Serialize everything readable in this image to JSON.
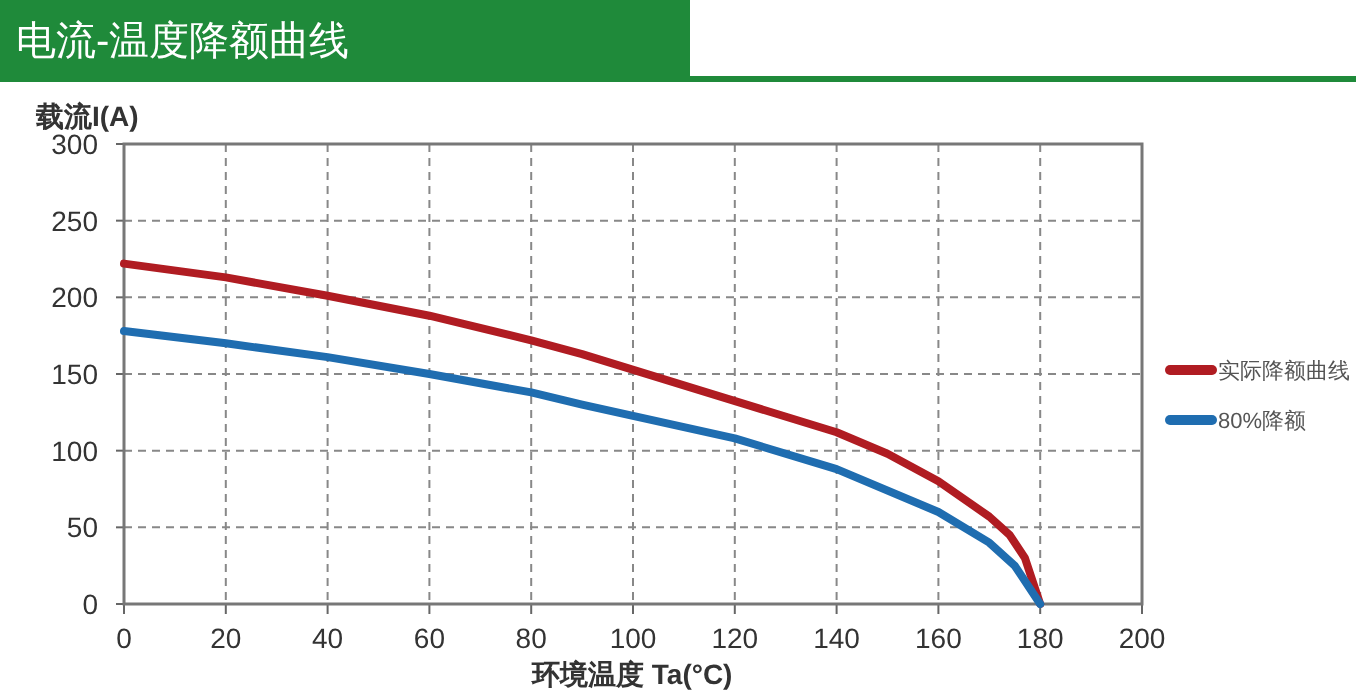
{
  "chart_data": {
    "type": "line",
    "title": "电流-温度降额曲线",
    "xlabel": "环境温度 Ta(°C)",
    "ylabel": "载流I(A)",
    "xlim": [
      0,
      200
    ],
    "xticks": [
      0,
      20,
      40,
      60,
      80,
      100,
      120,
      140,
      160,
      180,
      200
    ],
    "ylim": [
      0,
      300
    ],
    "yticks": [
      0,
      50,
      100,
      150,
      200,
      250,
      300
    ],
    "grid": true,
    "legend": "right",
    "line_style": "solid",
    "marker": "none",
    "series": [
      {
        "name": "实际降额曲线",
        "color": "#b01c22",
        "x": [
          0,
          20,
          40,
          60,
          80,
          90,
          140,
          150,
          160,
          170,
          174,
          177,
          180
        ],
        "values": [
          222,
          213,
          201,
          188,
          172,
          163,
          112,
          98,
          80,
          57,
          45,
          30,
          0
        ]
      },
      {
        "name": "80%降额",
        "color": "#1f6db0",
        "x": [
          0,
          20,
          40,
          60,
          80,
          90,
          120,
          140,
          160,
          170,
          175,
          180
        ],
        "values": [
          178,
          170,
          161,
          150,
          138,
          130,
          108,
          88,
          60,
          40,
          25,
          0
        ]
      }
    ]
  }
}
